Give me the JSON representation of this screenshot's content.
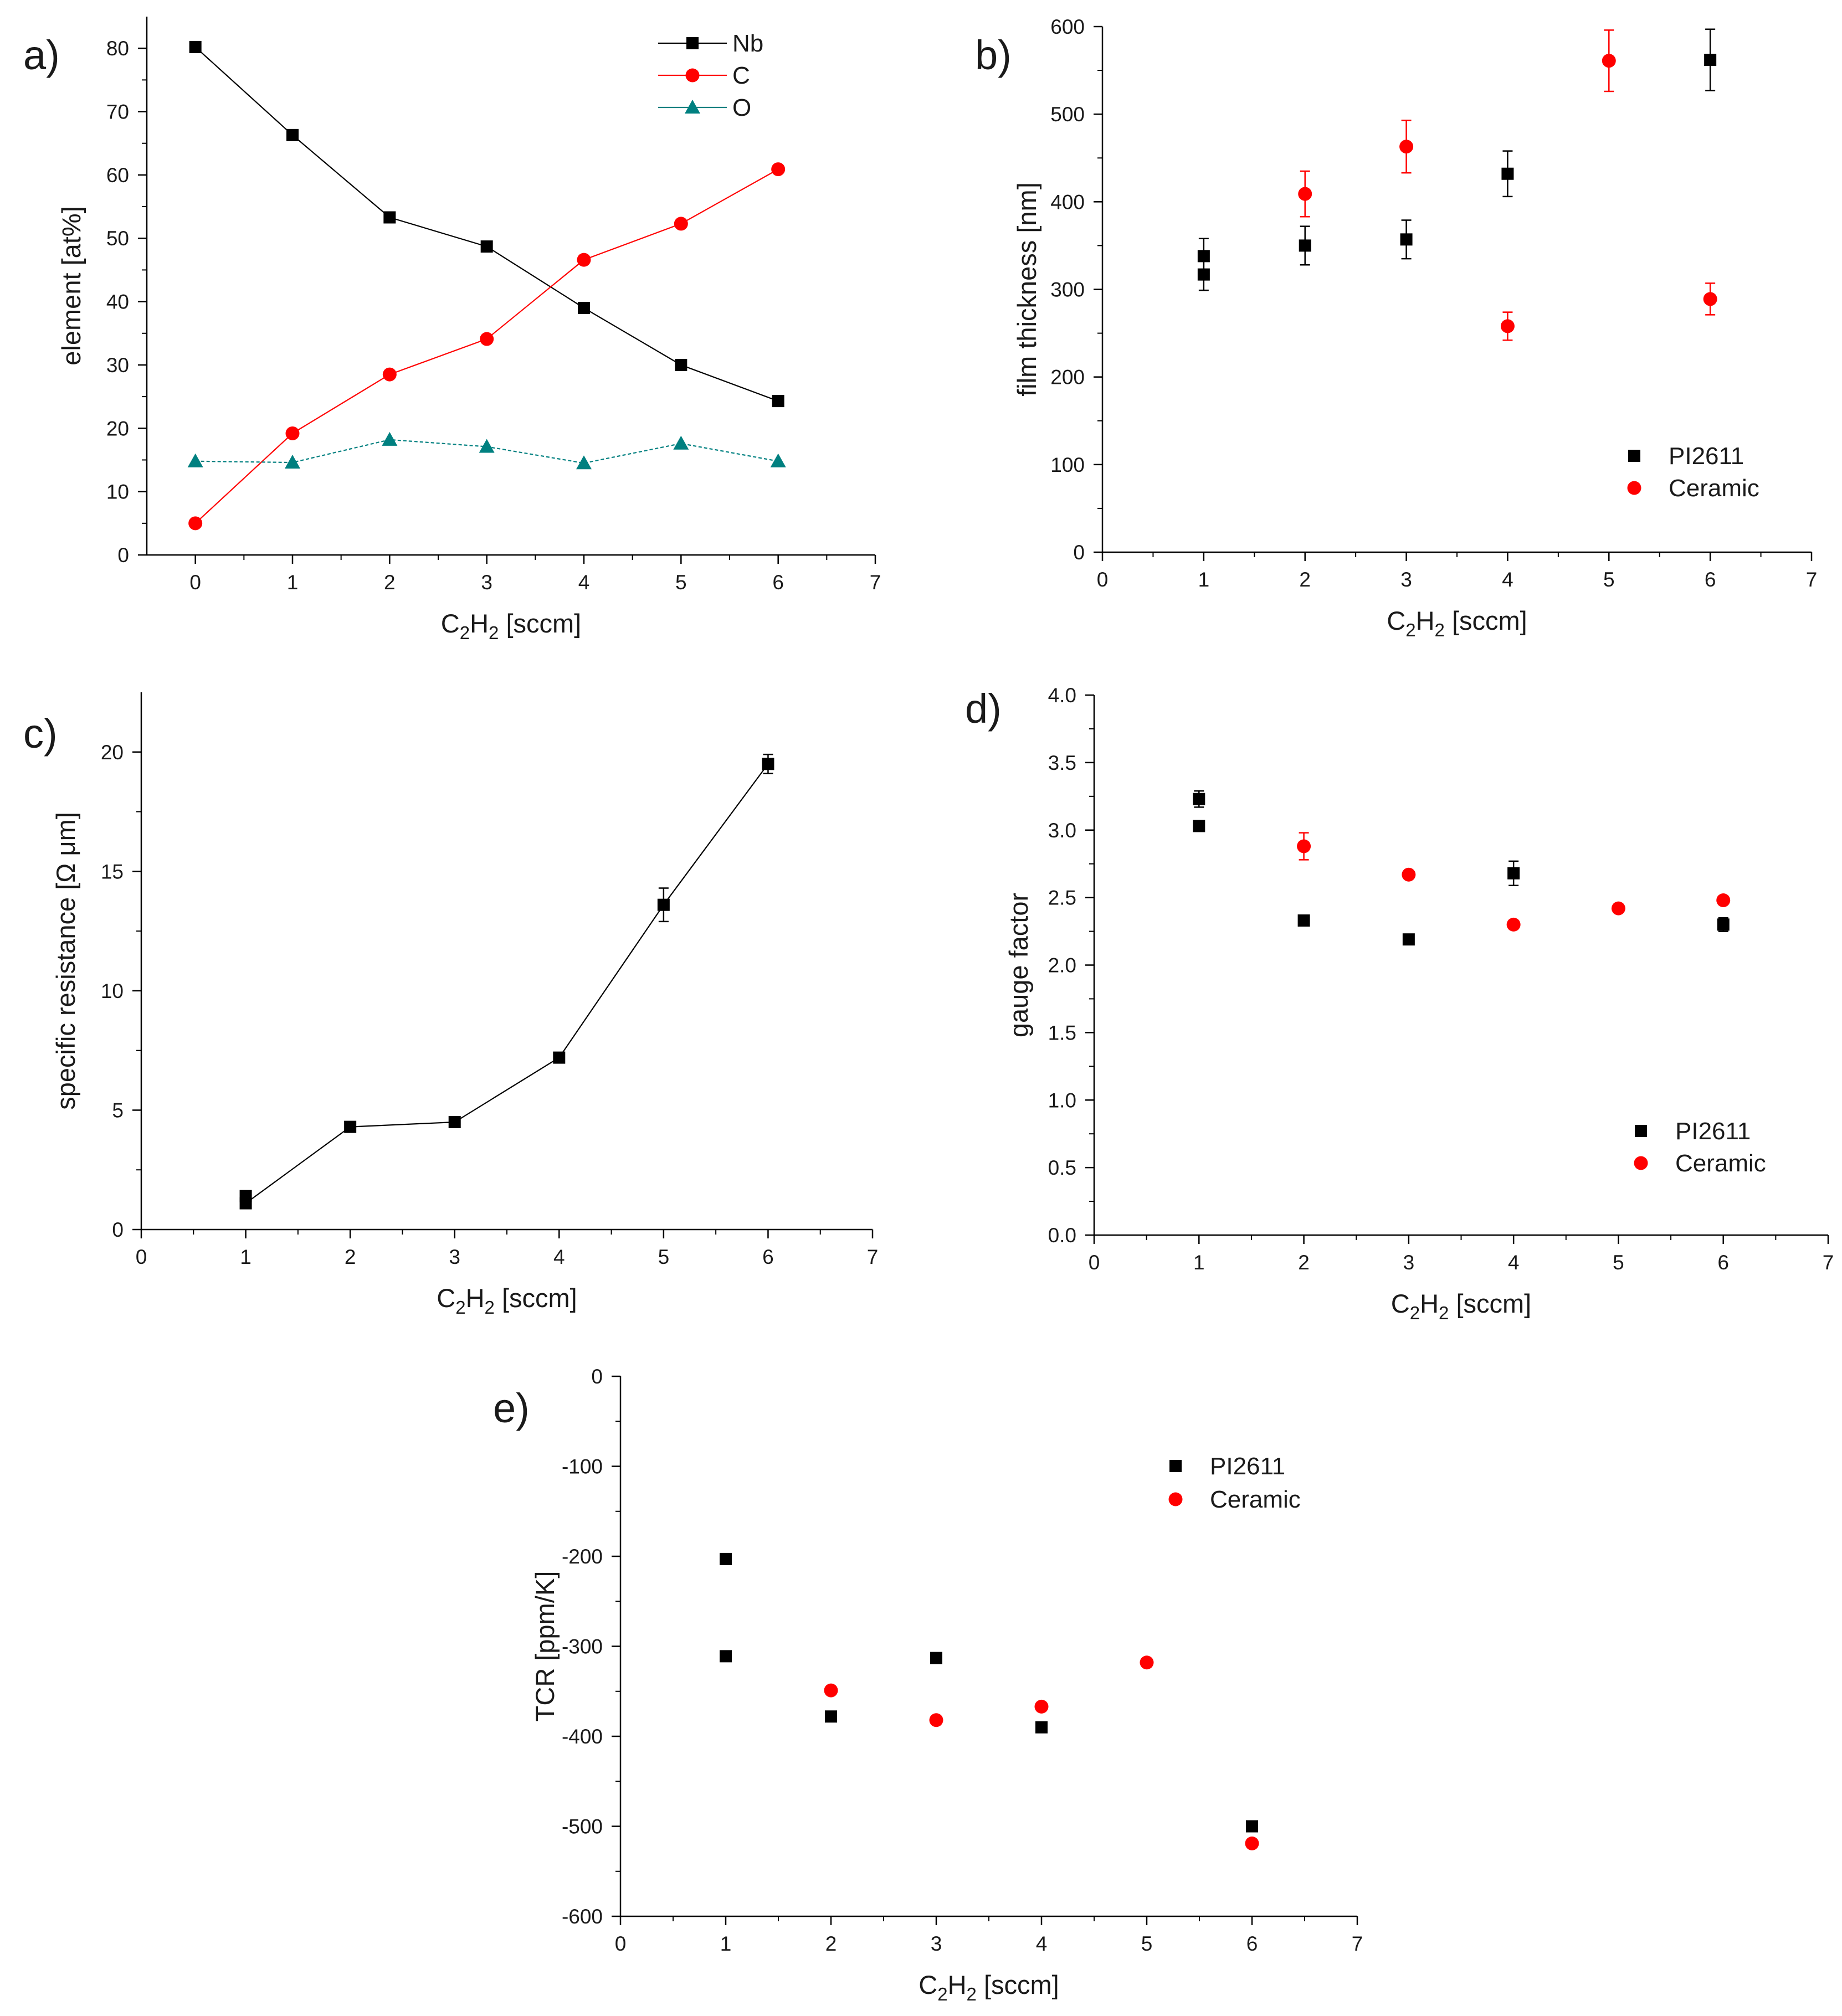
{
  "colors": {
    "black": "#000000",
    "red": "#ff0000",
    "teal": "#008080",
    "axis": "#000000"
  },
  "chart_data": [
    {
      "id": "a",
      "panel_label": "a)",
      "type": "line",
      "title": "",
      "xlabel": {
        "main": "C",
        "sub1": "2",
        "mid": "H",
        "sub2": "2",
        "rest": " [sccm]"
      },
      "ylabel": "element [at%]",
      "xlim": [
        -0.5,
        7
      ],
      "ylim": [
        0,
        85
      ],
      "xticks": [
        0,
        1,
        2,
        3,
        4,
        5,
        6,
        7
      ],
      "yticks": [
        0,
        10,
        20,
        30,
        40,
        50,
        60,
        70,
        80
      ],
      "legend_position": "top-right",
      "series": [
        {
          "name": "Nb",
          "marker": "square",
          "color": "#000000",
          "line": true,
          "x": [
            0,
            1,
            2,
            3,
            4,
            5,
            6
          ],
          "y": [
            80.2,
            66.3,
            53.3,
            48.7,
            39,
            30,
            24.3
          ]
        },
        {
          "name": "C",
          "marker": "circle",
          "color": "#ff0000",
          "line": true,
          "x": [
            0,
            1,
            2,
            3,
            4,
            5,
            6
          ],
          "y": [
            5,
            19.2,
            28.5,
            34.1,
            46.6,
            52.3,
            60.9
          ]
        },
        {
          "name": "O",
          "marker": "triangle",
          "color": "#008080",
          "line": true,
          "dashed": true,
          "x": [
            0,
            1,
            2,
            3,
            4,
            5,
            6
          ],
          "y": [
            14.8,
            14.6,
            18.2,
            17.1,
            14.5,
            17.6,
            14.8
          ]
        }
      ]
    },
    {
      "id": "b",
      "panel_label": "b)",
      "type": "scatter",
      "title": "",
      "xlabel": {
        "main": "C",
        "sub1": "2",
        "mid": "H",
        "sub2": "2",
        "rest": " [sccm]"
      },
      "ylabel": "film thickness [nm]",
      "xlim": [
        0,
        7
      ],
      "ylim": [
        0,
        600
      ],
      "xticks": [
        0,
        1,
        2,
        3,
        4,
        5,
        6,
        7
      ],
      "yticks": [
        0,
        100,
        200,
        300,
        400,
        500,
        600
      ],
      "legend_position": "bottom-right",
      "series": [
        {
          "name": "PI2611",
          "marker": "square",
          "color": "#000000",
          "x": [
            1,
            1,
            2,
            3,
            4,
            6
          ],
          "y": [
            338,
            317,
            350,
            357,
            432,
            562
          ],
          "err": [
            20,
            18,
            22,
            22,
            26,
            35
          ]
        },
        {
          "name": "Ceramic",
          "marker": "circle",
          "color": "#ff0000",
          "x": [
            2,
            3,
            4,
            5,
            6
          ],
          "y": [
            409,
            463,
            258,
            561,
            289
          ],
          "err": [
            26,
            30,
            16,
            35,
            18
          ]
        }
      ]
    },
    {
      "id": "c",
      "panel_label": "c)",
      "type": "line",
      "title": "",
      "xlabel": {
        "main": "C",
        "sub1": "2",
        "mid": "H",
        "sub2": "2",
        "rest": " [sccm]"
      },
      "ylabel": "specific resistance [Ω μm]",
      "xlim": [
        0,
        7
      ],
      "ylim": [
        0,
        22.5
      ],
      "xticks": [
        0,
        1,
        2,
        3,
        4,
        5,
        6,
        7
      ],
      "yticks": [
        0,
        5,
        10,
        15,
        20
      ],
      "legend_position": "none",
      "series": [
        {
          "name": "resistance",
          "marker": "square",
          "color": "#000000",
          "line": true,
          "x": [
            1,
            1,
            2,
            3,
            4,
            5,
            6
          ],
          "y": [
            1.1,
            1.4,
            4.3,
            4.5,
            7.2,
            13.6,
            19.5
          ],
          "err": [
            0,
            0,
            0,
            0,
            0,
            0.7,
            0.4
          ],
          "line_order": [
            0,
            2,
            3,
            4,
            5,
            6
          ]
        }
      ]
    },
    {
      "id": "d",
      "panel_label": "d)",
      "type": "scatter",
      "title": "",
      "xlabel": {
        "main": "C",
        "sub1": "2",
        "mid": "H",
        "sub2": "2",
        "rest": " [sccm]"
      },
      "ylabel": "gauge factor",
      "xlim": [
        0,
        7
      ],
      "ylim": [
        0,
        4.0
      ],
      "xticks": [
        0,
        1,
        2,
        3,
        4,
        5,
        6,
        7
      ],
      "yticks": [
        "0.0",
        "0.5",
        "1.0",
        "1.5",
        "2.0",
        "2.5",
        "3.0",
        "3.5",
        "4.0"
      ],
      "legend_position": "bottom-right",
      "series": [
        {
          "name": "PI2611",
          "marker": "square",
          "color": "#000000",
          "x": [
            1,
            1,
            2,
            3,
            4,
            6
          ],
          "y": [
            3.23,
            3.03,
            2.33,
            2.19,
            2.68,
            2.3
          ],
          "err": [
            0.06,
            0,
            0,
            0,
            0.09,
            0.05
          ]
        },
        {
          "name": "Ceramic",
          "marker": "circle",
          "color": "#ff0000",
          "x": [
            2,
            3,
            4,
            5,
            6
          ],
          "y": [
            2.88,
            2.67,
            2.3,
            2.42,
            2.48
          ],
          "err": [
            0.1,
            0,
            0,
            0,
            0
          ]
        }
      ]
    },
    {
      "id": "e",
      "panel_label": "e)",
      "type": "scatter",
      "title": "",
      "xlabel": {
        "main": "C",
        "sub1": "2",
        "mid": "H",
        "sub2": "2",
        "rest": " [sccm]"
      },
      "ylabel": "TCR [ppm/K]",
      "xlim": [
        0,
        7
      ],
      "ylim": [
        -600,
        0
      ],
      "xticks": [
        0,
        1,
        2,
        3,
        4,
        5,
        6,
        7
      ],
      "yticks": [
        0,
        -100,
        -200,
        -300,
        -400,
        -500,
        -600
      ],
      "legend_position": "top-right",
      "series": [
        {
          "name": "PI2611",
          "marker": "square",
          "color": "#000000",
          "x": [
            1,
            1,
            2,
            3,
            4,
            6
          ],
          "y": [
            -203,
            -311,
            -378,
            -313,
            -390,
            -500
          ]
        },
        {
          "name": "Ceramic",
          "marker": "circle",
          "color": "#ff0000",
          "x": [
            2,
            3,
            4,
            5,
            6
          ],
          "y": [
            -349,
            -382,
            -367,
            -318,
            -519
          ]
        }
      ]
    }
  ]
}
